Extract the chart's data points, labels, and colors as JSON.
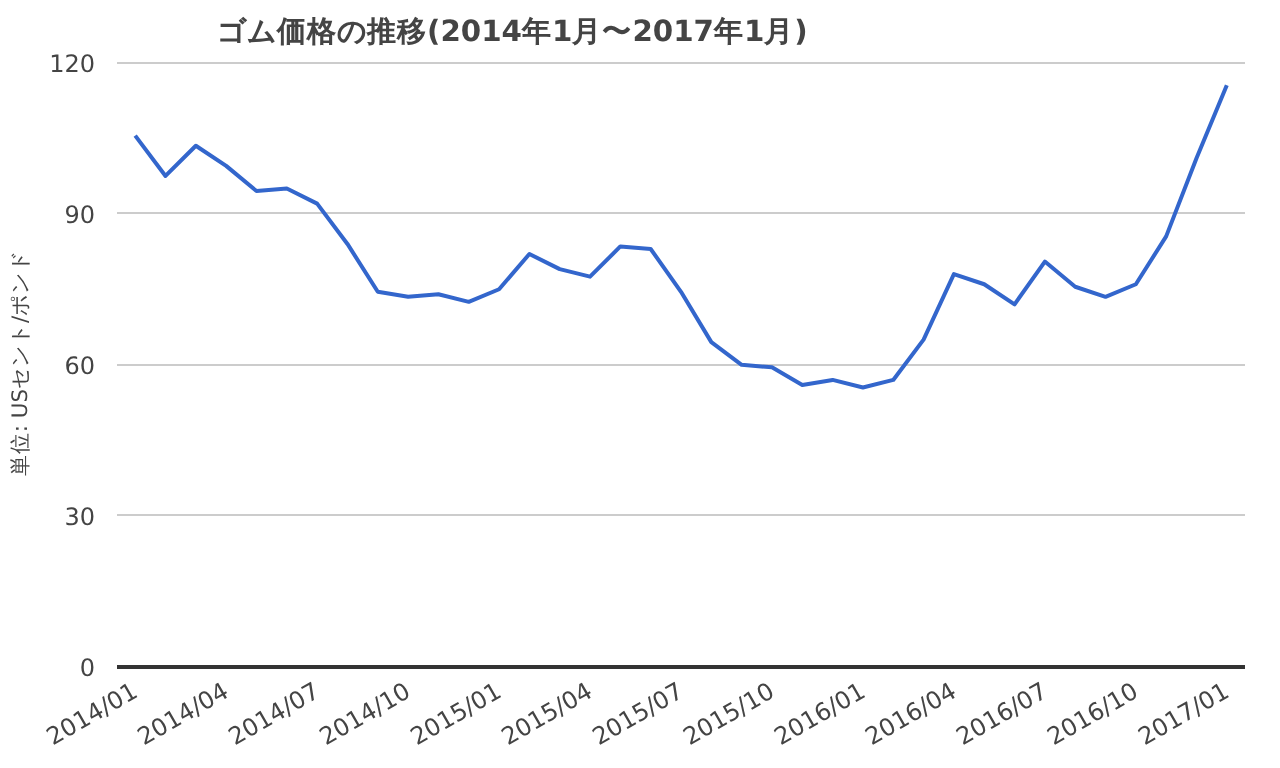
{
  "chart_data": {
    "type": "line",
    "title": "ゴム価格の推移(2014年1月〜2017年1月)",
    "ylabel": "単位: USセント/ポンド",
    "categories": [
      "2014/01",
      null,
      null,
      "2014/04",
      null,
      null,
      "2014/07",
      null,
      null,
      "2014/10",
      null,
      null,
      "2015/01",
      null,
      null,
      "2015/04",
      null,
      null,
      "2015/07",
      null,
      null,
      "2015/10",
      null,
      null,
      "2016/01",
      null,
      null,
      "2016/04",
      null,
      null,
      "2016/07",
      null,
      null,
      "2016/10",
      null,
      null,
      "2017/01"
    ],
    "series": [
      {
        "color": "#3366cc",
        "values": [
          105.5,
          97.5,
          103.5,
          99.5,
          94.5,
          95,
          92,
          84,
          74.5,
          73.5,
          74,
          72.5,
          75,
          82,
          79,
          77.5,
          83.5,
          83,
          74.5,
          64.5,
          60,
          59.5,
          56,
          57,
          55.5,
          57,
          65,
          78,
          76,
          72,
          80.5,
          75.5,
          73.5,
          76,
          85.5,
          101,
          115.5
        ]
      }
    ],
    "ylim": [
      0,
      120
    ],
    "yticks": [
      0,
      30,
      60,
      90,
      120
    ],
    "grid": "y",
    "marker": "none",
    "line_style": "solid"
  }
}
